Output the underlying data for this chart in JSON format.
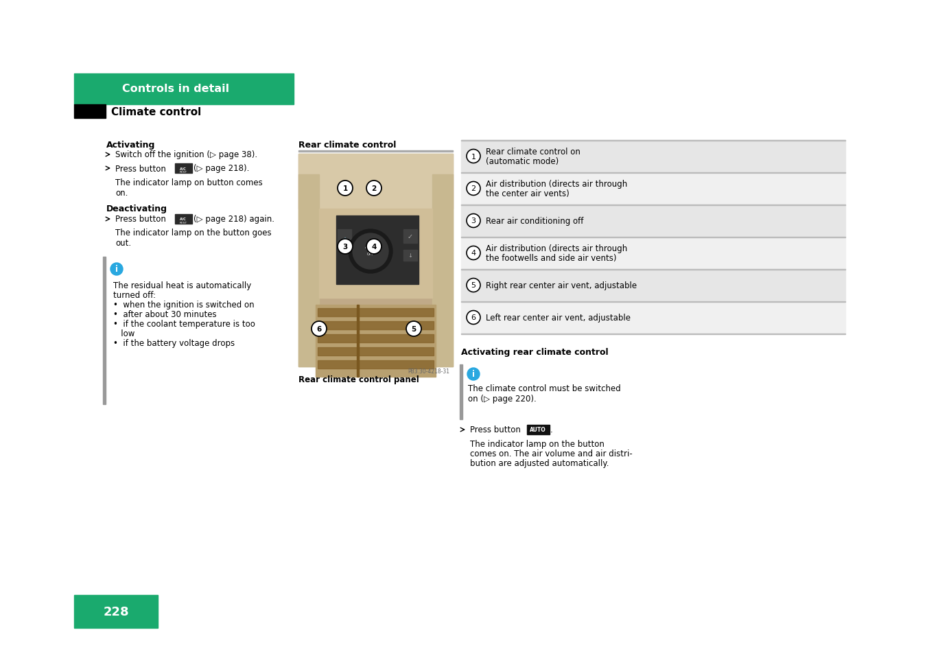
{
  "bg_color": "#ffffff",
  "green_header_color": "#1aaa6e",
  "black_bar_color": "#000000",
  "header_title": "Controls in detail",
  "sub_header": "Climate control",
  "page_number": "228",
  "info_icon_color": "#29a8e0",
  "legend_items": [
    {
      "num": "1",
      "text": "Rear climate control on\n(automatic mode)"
    },
    {
      "num": "2",
      "text": "Air distribution (directs air through\nthe center air vents)"
    },
    {
      "num": "3",
      "text": "Rear air conditioning off"
    },
    {
      "num": "4",
      "text": "Air distribution (directs air through\nthe footwells and side air vents)"
    },
    {
      "num": "5",
      "text": "Right rear center air vent, adjustable"
    },
    {
      "num": "6",
      "text": "Left rear center air vent, adjustable"
    }
  ]
}
